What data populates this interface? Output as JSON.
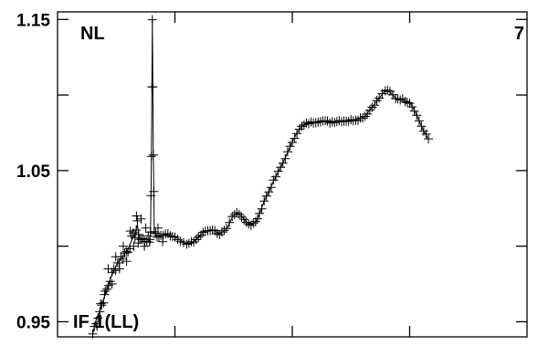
{
  "chart_data": {
    "type": "scatter",
    "title": "",
    "xlabel": "",
    "ylabel": "",
    "marker": "+",
    "grid": false,
    "ylim": [
      0.94,
      1.155
    ],
    "y_ticks": [
      0.95,
      1.0,
      1.05,
      1.1,
      1.15
    ],
    "y_tick_labels": [
      "0.95",
      "",
      "1.05",
      "",
      "1.15"
    ],
    "xlim": [
      0,
      1
    ],
    "x_ticks": [
      0.25,
      0.5,
      0.75
    ],
    "annotations": {
      "top_left": "NL",
      "top_right": "7",
      "bottom_left": "IF 1(LL)"
    },
    "series": [
      {
        "points": [
          [
            0.075,
            0.942
          ],
          [
            0.082,
            0.951
          ],
          [
            0.09,
            0.957
          ],
          [
            0.098,
            0.965
          ],
          [
            0.105,
            0.971
          ],
          [
            0.112,
            0.978
          ],
          [
            0.12,
            0.984
          ],
          [
            0.128,
            0.989
          ],
          [
            0.135,
            0.992
          ],
          [
            0.143,
            0.995
          ],
          [
            0.15,
            0.998
          ],
          [
            0.158,
            1.004
          ],
          [
            0.165,
            1.008
          ],
          [
            0.17,
            1.014
          ],
          [
            0.175,
            1.005
          ],
          [
            0.182,
            1.004
          ],
          [
            0.19,
            1.005
          ],
          [
            0.196,
            1.003
          ],
          [
            0.198,
            1.009
          ],
          [
            0.2,
            1.06
          ],
          [
            0.202,
            1.15
          ],
          [
            0.204,
            1.061
          ],
          [
            0.206,
            1.01
          ],
          [
            0.212,
            1.006
          ],
          [
            0.22,
            1.007
          ],
          [
            0.235,
            1.008
          ],
          [
            0.25,
            1.006
          ],
          [
            0.262,
            1.004
          ],
          [
            0.275,
            1.001
          ],
          [
            0.29,
            1.003
          ],
          [
            0.3,
            1.006
          ],
          [
            0.315,
            1.01
          ],
          [
            0.33,
            1.011
          ],
          [
            0.345,
            1.008
          ],
          [
            0.36,
            1.011
          ],
          [
            0.372,
            1.019
          ],
          [
            0.382,
            1.022
          ],
          [
            0.392,
            1.02
          ],
          [
            0.402,
            1.016
          ],
          [
            0.412,
            1.014
          ],
          [
            0.422,
            1.016
          ],
          [
            0.43,
            1.021
          ],
          [
            0.44,
            1.03
          ],
          [
            0.45,
            1.036
          ],
          [
            0.46,
            1.043
          ],
          [
            0.47,
            1.049
          ],
          [
            0.48,
            1.055
          ],
          [
            0.49,
            1.062
          ],
          [
            0.5,
            1.069
          ],
          [
            0.51,
            1.075
          ],
          [
            0.52,
            1.079
          ],
          [
            0.53,
            1.081
          ],
          [
            0.545,
            1.082
          ],
          [
            0.56,
            1.083
          ],
          [
            0.58,
            1.082
          ],
          [
            0.6,
            1.083
          ],
          [
            0.62,
            1.083
          ],
          [
            0.64,
            1.084
          ],
          [
            0.655,
            1.086
          ],
          [
            0.67,
            1.092
          ],
          [
            0.685,
            1.098
          ],
          [
            0.698,
            1.103
          ],
          [
            0.708,
            1.102
          ],
          [
            0.72,
            1.098
          ],
          [
            0.735,
            1.097
          ],
          [
            0.75,
            1.095
          ],
          [
            0.76,
            1.09
          ],
          [
            0.77,
            1.083
          ],
          [
            0.78,
            1.076
          ],
          [
            0.79,
            1.071
          ]
        ],
        "noisy_points": [
          [
            0.084,
            0.947
          ],
          [
            0.092,
            0.962
          ],
          [
            0.1,
            0.968
          ],
          [
            0.108,
            0.985
          ],
          [
            0.116,
            0.975
          ],
          [
            0.124,
            0.993
          ],
          [
            0.132,
            0.985
          ],
          [
            0.14,
            1.0
          ],
          [
            0.147,
            0.99
          ],
          [
            0.155,
            1.01
          ],
          [
            0.162,
            1.0
          ],
          [
            0.168,
            1.02
          ],
          [
            0.172,
            1.002
          ],
          [
            0.178,
            1.018
          ],
          [
            0.185,
            1.0
          ],
          [
            0.188,
            1.012
          ],
          [
            0.214,
            1.012
          ],
          [
            0.224,
            1.003
          ]
        ]
      }
    ]
  }
}
